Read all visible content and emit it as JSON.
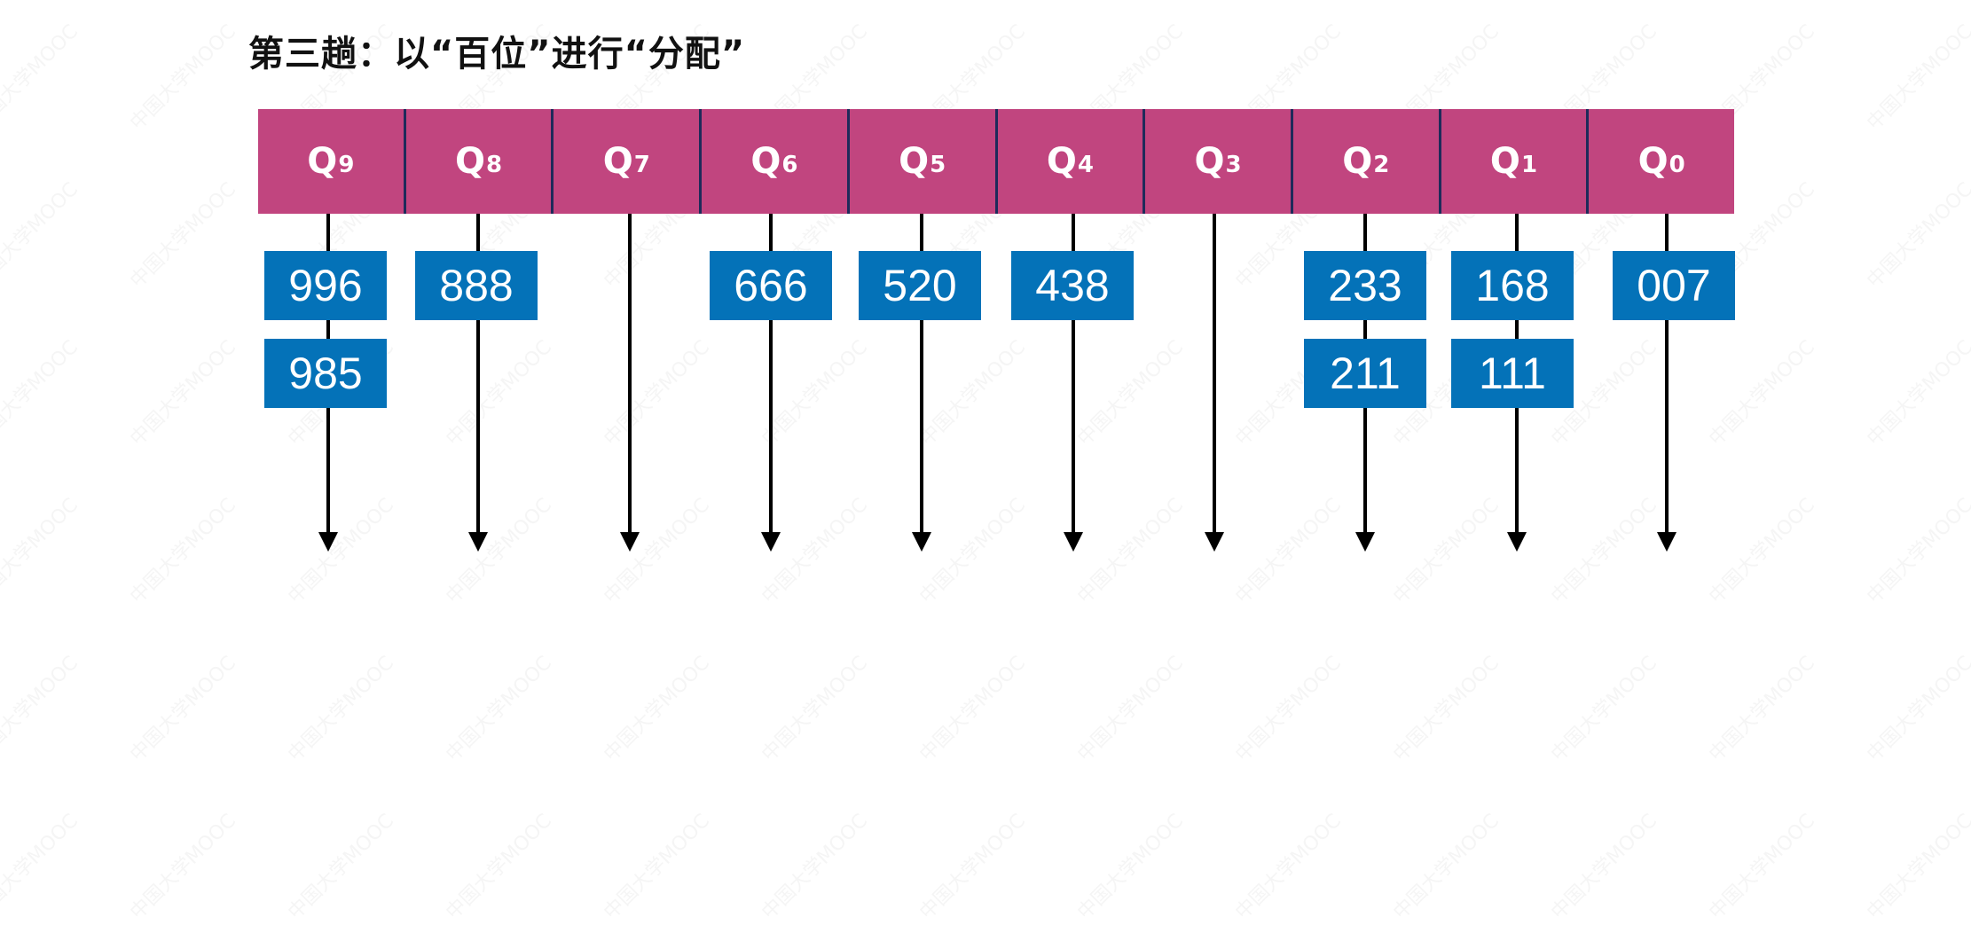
{
  "title": "第三趟：以“百位”进行“分配”",
  "watermark_text": "中国大学MOOC",
  "colors": {
    "queue_fill": "#c1457f",
    "queue_divider": "#1e2a5a",
    "box_fill": "#0472b8",
    "arrow": "#000000"
  },
  "queues": [
    {
      "label": "Q",
      "index": "9",
      "items": [
        "996",
        "985"
      ]
    },
    {
      "label": "Q",
      "index": "8",
      "items": [
        "888"
      ]
    },
    {
      "label": "Q",
      "index": "7",
      "items": []
    },
    {
      "label": "Q",
      "index": "6",
      "items": [
        "666"
      ]
    },
    {
      "label": "Q",
      "index": "5",
      "items": [
        "520"
      ]
    },
    {
      "label": "Q",
      "index": "4",
      "items": [
        "438"
      ]
    },
    {
      "label": "Q",
      "index": "3",
      "items": []
    },
    {
      "label": "Q",
      "index": "2",
      "items": [
        "233",
        "211"
      ]
    },
    {
      "label": "Q",
      "index": "1",
      "items": [
        "168",
        "111"
      ]
    },
    {
      "label": "Q",
      "index": "0",
      "items": [
        "007"
      ]
    }
  ]
}
